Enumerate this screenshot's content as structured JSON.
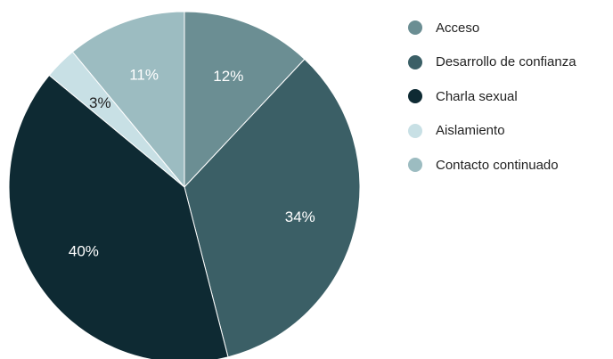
{
  "chart_data": {
    "type": "pie",
    "title": "",
    "start_angle_deg": 0,
    "direction": "clockwise",
    "legend_position": "right",
    "slices": [
      {
        "name": "Acceso",
        "value": 12,
        "label": "12%",
        "color": "#6b8e93",
        "label_color": "#ffffff"
      },
      {
        "name": "Desarrollo de confianza",
        "value": 34,
        "label": "34%",
        "color": "#3b5f66",
        "label_color": "#ffffff"
      },
      {
        "name": "Charla sexual",
        "value": 40,
        "label": "40%",
        "color": "#0e2a33",
        "label_color": "#ffffff"
      },
      {
        "name": "Aislamiento",
        "value": 3,
        "label": "3%",
        "color": "#c8e0e5",
        "label_color": "#222222"
      },
      {
        "name": "Contacto continuado",
        "value": 11,
        "label": "11%",
        "color": "#9cbcc1",
        "label_color": "#ffffff"
      }
    ]
  }
}
